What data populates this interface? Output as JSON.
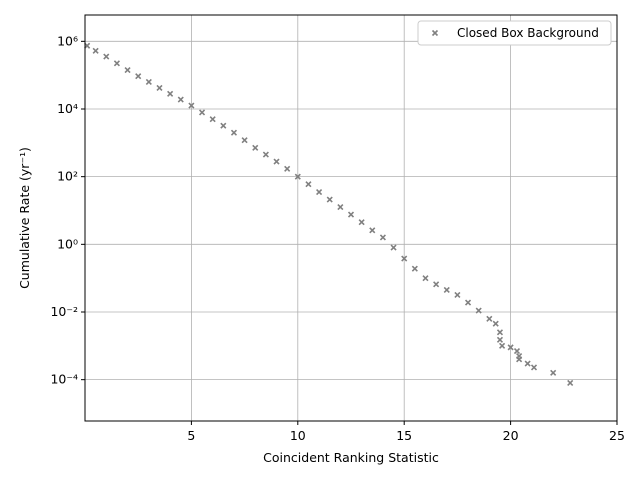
{
  "chart_data": {
    "type": "scatter",
    "log_y": true,
    "grid": true,
    "legend_position": "upper right",
    "xlabel": "Coincident Ranking Statistic",
    "ylabel": "Cumulative Rate (yr⁻¹)",
    "xlim": [
      0,
      25
    ],
    "xticks": [
      5,
      10,
      15,
      20,
      25
    ],
    "ylim": [
      6e-06,
      6000000
    ],
    "yticks": [
      {
        "value": 0.0001,
        "label": "10⁻⁴"
      },
      {
        "value": 0.01,
        "label": "10⁻²"
      },
      {
        "value": 1,
        "label": "10⁰"
      },
      {
        "value": 100,
        "label": "10²"
      },
      {
        "value": 10000,
        "label": "10⁴"
      },
      {
        "value": 1000000,
        "label": "10⁶"
      }
    ],
    "series": [
      {
        "name": "Closed Box Background",
        "color": "#808080",
        "x": [
          0.1,
          0.5,
          1,
          1.5,
          2,
          2.5,
          3,
          3.5,
          4,
          4.5,
          5,
          5.5,
          6,
          6.5,
          7,
          7.5,
          8,
          8.5,
          9,
          9.5,
          10,
          10.5,
          11,
          11.5,
          12,
          12.5,
          13,
          13.5,
          14,
          14.5,
          15,
          15.5,
          16,
          16.5,
          17,
          17.5,
          18,
          18.5,
          19,
          19.3,
          19.5,
          19.5,
          19.6,
          20,
          20.3,
          20.4,
          20.4,
          20.8,
          21.1,
          22,
          22.8
        ],
        "values": [
          740000,
          525000,
          355000,
          224000,
          141000,
          93000,
          63000,
          42000,
          28000,
          19000,
          12600,
          7900,
          5000,
          3200,
          2000,
          1200,
          710,
          450,
          280,
          170,
          100,
          60,
          35,
          21,
          12.6,
          7.6,
          4.5,
          2.6,
          1.6,
          0.8,
          0.38,
          0.19,
          0.1,
          0.066,
          0.045,
          0.032,
          0.019,
          0.011,
          0.0063,
          0.0045,
          0.0025,
          0.0015,
          0.001,
          0.0009,
          0.0007,
          0.0005,
          0.0004,
          0.0003,
          0.00023,
          0.00016,
          8e-05
        ]
      }
    ]
  }
}
